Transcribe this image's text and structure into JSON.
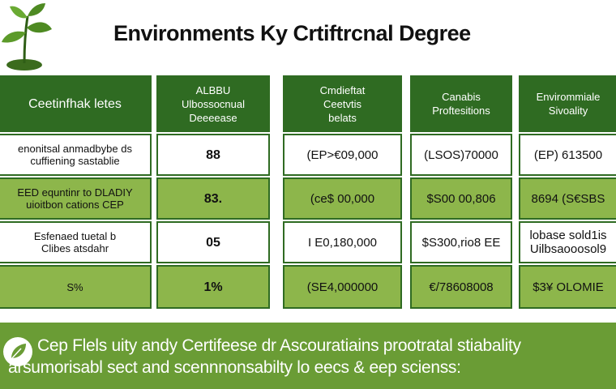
{
  "title": "Environments Ky Crtiftrcnal Degree",
  "colors": {
    "header_green": "#2f6b22",
    "light_green": "#8db64b",
    "banner_green": "#6a9c35"
  },
  "table": {
    "columns": [
      {
        "header": "Ceetinfhak letes",
        "rows": [
          "enonitsal anmadbybe ds\ncuffiening sastablie",
          "EED equntinr to DLADIY\nuioitbon cations CEP",
          "Esfenaed tuetal b\nClibes atsdahr",
          "S%"
        ]
      },
      {
        "header": "ALBBU\nUlbossocnual\nDeeeease",
        "rows": [
          "88",
          "83.",
          "05",
          "1%"
        ]
      },
      {
        "header": "Cmdieftat\nCeetvtis\nbelats",
        "rows": [
          "(EP>€09,000",
          "(ce$ 00,000",
          "I E0,180,000",
          "(SE4,000000"
        ]
      },
      {
        "header": "Canabis\nProftesitions",
        "rows": [
          "(LSOS)70000",
          "$S00 00,806",
          "$S300,rio8 EE",
          "€/78608008"
        ]
      },
      {
        "header": "Envirommiale\nSivoality",
        "rows": [
          "(EP) 613500",
          "8694 (S€SBS",
          "lobase sold1is\nUilbsaooosol9",
          "$3¥ OLOMIE"
        ]
      }
    ]
  },
  "banner": {
    "line1": "Cep Flels uity andy Certifeese dr Ascouratiains prootratal stiabality",
    "line2": "arsumorisabl sect and scennnonsabilty lo eecs & eep scienss:"
  },
  "icons": {
    "plant": "plant-sprout-icon",
    "banner": "leaf-icon"
  }
}
